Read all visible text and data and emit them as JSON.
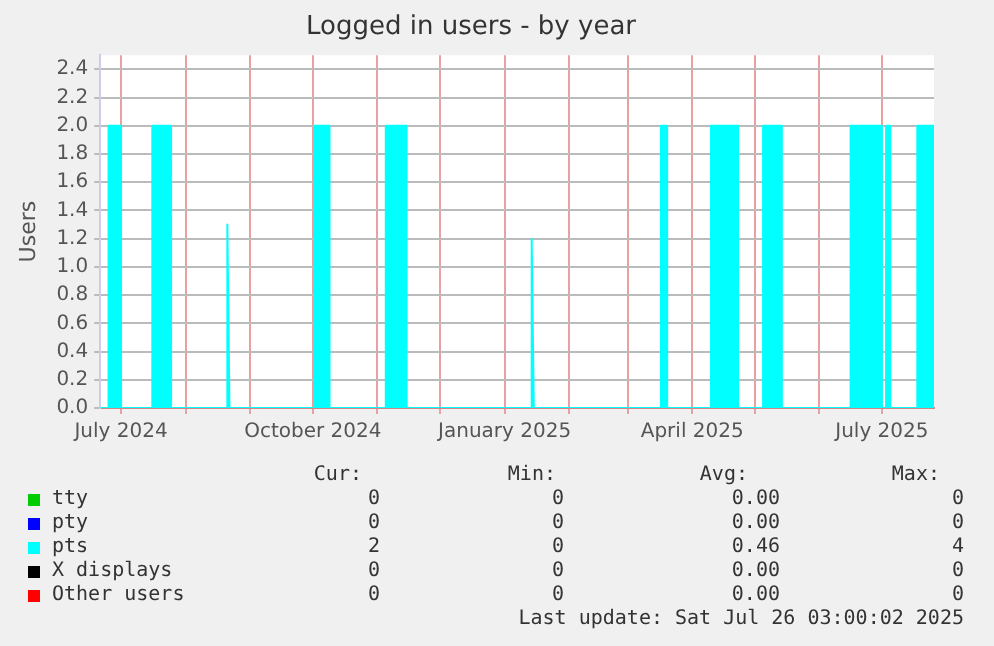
{
  "chart_data": {
    "type": "area",
    "title": "Logged in users - by year",
    "ylabel": "Users",
    "xlim": [
      "2024-06-21",
      "2025-07-26"
    ],
    "xticks": [
      {
        "value": "2024-07-01",
        "label": "July 2024"
      },
      {
        "value": "2024-08-01",
        "label": null
      },
      {
        "value": "2024-09-01",
        "label": null
      },
      {
        "value": "2024-10-01",
        "label": "October 2024"
      },
      {
        "value": "2024-11-01",
        "label": null
      },
      {
        "value": "2024-12-01",
        "label": null
      },
      {
        "value": "2025-01-01",
        "label": "January 2025"
      },
      {
        "value": "2025-02-01",
        "label": null
      },
      {
        "value": "2025-03-01",
        "label": null
      },
      {
        "value": "2025-04-01",
        "label": "April 2025"
      },
      {
        "value": "2025-05-01",
        "label": null
      },
      {
        "value": "2025-06-01",
        "label": null
      },
      {
        "value": "2025-07-01",
        "label": "July 2025"
      }
    ],
    "ylim": [
      0,
      2.5
    ],
    "yticks": [
      {
        "value": 0,
        "label": "0.0"
      },
      {
        "value": 0.2,
        "label": "0.2"
      },
      {
        "value": 0.4,
        "label": "0.4"
      },
      {
        "value": 0.6,
        "label": "0.6"
      },
      {
        "value": 0.8,
        "label": "0.8"
      },
      {
        "value": 1,
        "label": "1.0"
      },
      {
        "value": 1.2,
        "label": "1.2"
      },
      {
        "value": 1.4,
        "label": "1.4"
      },
      {
        "value": 1.6,
        "label": "1.6"
      },
      {
        "value": 1.8,
        "label": "1.8"
      },
      {
        "value": 2,
        "label": "2.0"
      },
      {
        "value": 2.2,
        "label": "2.2"
      },
      {
        "value": 2.4,
        "label": "2.4"
      }
    ],
    "grid": true,
    "legend": "bottom",
    "series": [
      {
        "name": "tty",
        "color": "#00cc00"
      },
      {
        "name": "pty",
        "color": "#0000ff"
      },
      {
        "name": "pts",
        "color": "#00ffff",
        "x": [
          "2024-06-21",
          "2024-06-25",
          "2024-06-25",
          "2024-07-01",
          "2024-07-01",
          "2024-07-16",
          "2024-07-16",
          "2024-07-25",
          "2024-07-25",
          "2024-08-21",
          "2024-08-21",
          "2024-08-22",
          "2024-10-02",
          "2024-10-02",
          "2024-10-09",
          "2024-10-09",
          "2024-11-05",
          "2024-11-05",
          "2024-11-15",
          "2024-11-15",
          "2025-01-14",
          "2025-01-14",
          "2025-01-15",
          "2025-03-17",
          "2025-03-17",
          "2025-03-20",
          "2025-03-20",
          "2025-04-10",
          "2025-04-10",
          "2025-04-23",
          "2025-04-23",
          "2025-05-05",
          "2025-05-05",
          "2025-05-14",
          "2025-05-14",
          "2025-06-16",
          "2025-06-16",
          "2025-07-01",
          "2025-07-01",
          "2025-07-03",
          "2025-07-03",
          "2025-07-05",
          "2025-07-05",
          "2025-07-18",
          "2025-07-18",
          "2025-07-26"
        ],
        "values": [
          0,
          0,
          2,
          2,
          0,
          0,
          2,
          2,
          0,
          0,
          1.3,
          0,
          0,
          2,
          2,
          0,
          0,
          2,
          2,
          0,
          0,
          1.2,
          0,
          0,
          2,
          2,
          0,
          0,
          2,
          2,
          0,
          0,
          2,
          2,
          0,
          0,
          2,
          2,
          0,
          0,
          2,
          2,
          0,
          0,
          2,
          2
        ]
      },
      {
        "name": "X displays",
        "color": "#000000"
      },
      {
        "name": "Other users",
        "color": "#ff0000"
      }
    ],
    "annotations": [
      "Cur:",
      "Min:",
      "Avg:",
      "Max:",
      "0",
      "0",
      "0.00",
      "0",
      "0",
      "0",
      "0.00",
      "0",
      "2",
      "0",
      "0.46",
      "4",
      "0",
      "0",
      "0.00",
      "0",
      "0",
      "0",
      "0.00",
      "0",
      "Last update: Sat Jul 26 03:00:02 2025"
    ]
  }
}
